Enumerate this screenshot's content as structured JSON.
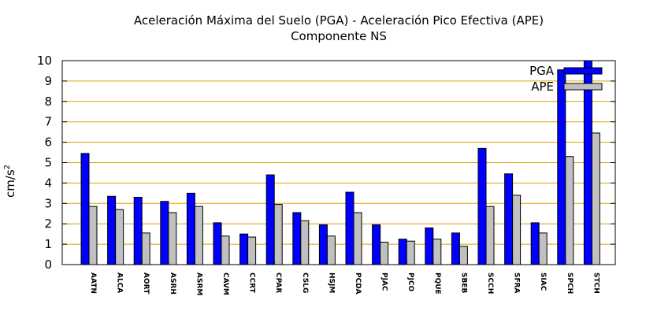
{
  "chart_data": {
    "type": "bar",
    "title": "Aceleración Máxima del Suelo (PGA) -  Aceleración Pico Efectiva (APE)",
    "subtitle": "Componente NS",
    "ylabel": "cm/s",
    "ylabel_sup": "2",
    "ylim": [
      0,
      10
    ],
    "yticks": [
      "0",
      "1",
      "2",
      "3",
      "4",
      "5",
      "6",
      "7",
      "8",
      "9",
      "10"
    ],
    "grid": true,
    "legend_position": "top-right",
    "categories": [
      "AATN",
      "ALCA",
      "AORT",
      "ASRH",
      "ASRM",
      "CAVM",
      "CCRT",
      "CPAR",
      "CSLG",
      "HSJM",
      "PCDA",
      "PJAC",
      "PJCO",
      "PQUE",
      "SBEB",
      "SCCH",
      "SFRA",
      "SIAC",
      "SPCH",
      "STCH"
    ],
    "series": [
      {
        "name": "PGA",
        "color": "#0000ff",
        "values": [
          5.45,
          3.35,
          3.3,
          3.1,
          3.5,
          2.05,
          1.5,
          4.4,
          2.55,
          1.95,
          3.55,
          1.95,
          1.25,
          1.8,
          1.55,
          5.7,
          4.45,
          2.05,
          9.55,
          10.0
        ]
      },
      {
        "name": "APE",
        "color": "#c0c0c0",
        "values": [
          2.85,
          2.7,
          1.55,
          2.55,
          2.85,
          1.4,
          1.35,
          2.95,
          2.15,
          1.4,
          2.55,
          1.1,
          1.15,
          1.25,
          0.9,
          2.85,
          3.4,
          1.55,
          5.3,
          6.45
        ]
      }
    ]
  }
}
